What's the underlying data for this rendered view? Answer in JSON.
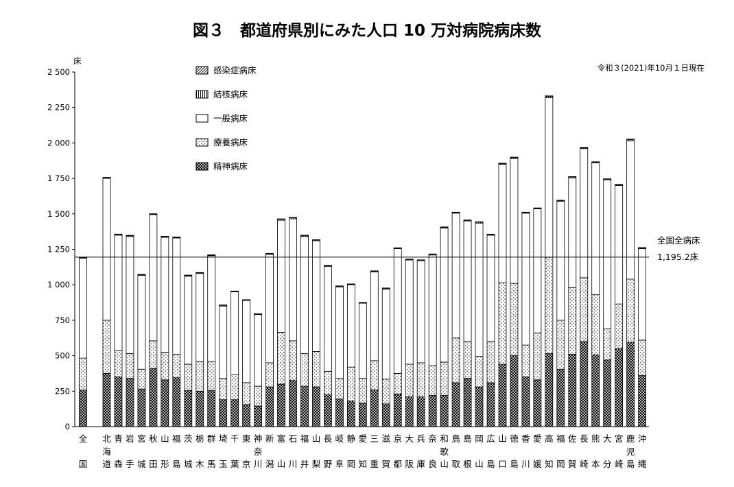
{
  "chart_data": {
    "type": "bar",
    "stacked": true,
    "title": "図３　都道府県別にみた人口 10 万対病院病床数",
    "date_note": "令和３(2021)年10月１日現在",
    "unit_label": "床",
    "ylim": [
      0,
      2500
    ],
    "yticks": [
      0,
      250,
      500,
      750,
      1000,
      1250,
      1500,
      1750,
      2000,
      2250,
      2500
    ],
    "ytick_labels": [
      "0",
      "250",
      "500",
      "750",
      "1 000",
      "1 250",
      "1 500",
      "1 750",
      "2 000",
      "2 250",
      "2 500"
    ],
    "reference_line": {
      "value": 1195.2,
      "label_line1": "全国全病床",
      "label_line2": "1,195.2床"
    },
    "categories": [
      "全国",
      "北海道",
      "青森",
      "岩手",
      "宮城",
      "秋田",
      "山形",
      "福島",
      "茨城",
      "栃木",
      "群馬",
      "埼玉",
      "千葉",
      "東京",
      "神奈川",
      "新潟",
      "富山",
      "石川",
      "福井",
      "山梨",
      "長野",
      "岐阜",
      "静岡",
      "愛知",
      "三重",
      "滋賀",
      "京都",
      "大阪",
      "兵庫",
      "奈良",
      "和歌山",
      "鳥取",
      "島根",
      "岡山",
      "広島",
      "山口",
      "徳島",
      "香川",
      "愛媛",
      "高知",
      "福岡",
      "佐賀",
      "長崎",
      "熊本",
      "大分",
      "宮崎",
      "鹿児島",
      "沖縄"
    ],
    "category_label_rows": [
      [
        "全",
        "北",
        "青",
        "岩",
        "宮",
        "秋",
        "山",
        "福",
        "茨",
        "栃",
        "群",
        "埼",
        "千",
        "東",
        "神",
        "新",
        "富",
        "石",
        "福",
        "山",
        "長",
        "岐",
        "静",
        "愛",
        "三",
        "滋",
        "京",
        "大",
        "兵",
        "奈",
        "和",
        "鳥",
        "島",
        "岡",
        "広",
        "山",
        "徳",
        "香",
        "愛",
        "高",
        "福",
        "佐",
        "長",
        "熊",
        "大",
        "宮",
        "鹿",
        "沖"
      ],
      [
        "",
        "海",
        "",
        "",
        "",
        "",
        "",
        "",
        "",
        "",
        "",
        "",
        "",
        "",
        "奈",
        "",
        "",
        "",
        "",
        "",
        "",
        "",
        "",
        "",
        "",
        "",
        "",
        "",
        "",
        "",
        "歌",
        "",
        "",
        "",
        "",
        "",
        "",
        "",
        "",
        "",
        "",
        "",
        "",
        "",
        "",
        "",
        "児",
        ""
      ],
      [
        "国",
        "道",
        "森",
        "手",
        "城",
        "田",
        "形",
        "島",
        "城",
        "木",
        "馬",
        "玉",
        "葉",
        "京",
        "川",
        "潟",
        "山",
        "川",
        "井",
        "梨",
        "野",
        "阜",
        "岡",
        "知",
        "重",
        "賀",
        "都",
        "阪",
        "庫",
        "良",
        "山",
        "取",
        "根",
        "山",
        "島",
        "口",
        "島",
        "川",
        "媛",
        "知",
        "岡",
        "賀",
        "崎",
        "本",
        "分",
        "崎",
        "島",
        "縄"
      ]
    ],
    "series": [
      {
        "name": "精神病床",
        "values": [
          258,
          375,
          350,
          340,
          265,
          410,
          330,
          345,
          255,
          250,
          255,
          190,
          190,
          155,
          145,
          280,
          300,
          325,
          285,
          280,
          225,
          195,
          180,
          165,
          260,
          160,
          230,
          210,
          210,
          220,
          220,
          310,
          340,
          280,
          310,
          440,
          500,
          350,
          330,
          515,
          405,
          510,
          600,
          505,
          470,
          550,
          595,
          360
        ]
      },
      {
        "name": "療養病床",
        "values": [
          225,
          375,
          185,
          175,
          140,
          195,
          195,
          165,
          185,
          210,
          205,
          150,
          175,
          155,
          140,
          170,
          365,
          280,
          230,
          250,
          165,
          145,
          240,
          175,
          205,
          175,
          145,
          230,
          240,
          210,
          235,
          315,
          260,
          215,
          290,
          575,
          510,
          225,
          330,
          680,
          345,
          470,
          450,
          425,
          220,
          315,
          445,
          250
        ]
      },
      {
        "name": "一般病床",
        "values": [
          705,
          1000,
          815,
          825,
          662,
          890,
          810,
          820,
          620,
          620,
          745,
          510,
          585,
          580,
          505,
          765,
          790,
          860,
          825,
          780,
          740,
          645,
          580,
          530,
          625,
          635,
          880,
          735,
          720,
          780,
          945,
          880,
          850,
          940,
          750,
          835,
          880,
          930,
          875,
          1123,
          838,
          773,
          910,
          930,
          1050,
          835,
          975,
          645
        ]
      },
      {
        "name": "結核病床",
        "values": [
          4,
          6,
          6,
          7,
          5,
          4,
          5,
          5,
          7,
          5,
          5,
          7,
          5,
          4,
          5,
          5,
          8,
          8,
          8,
          6,
          5,
          6,
          5,
          5,
          7,
          6,
          5,
          5,
          5,
          6,
          6,
          5,
          5,
          8,
          5,
          5,
          8,
          5,
          5,
          12,
          7,
          8,
          7,
          6,
          6,
          6,
          10,
          6
        ]
      },
      {
        "name": "感染症病床",
        "values": [
          1.5,
          1.5,
          1.5,
          2,
          1.5,
          2,
          2,
          2,
          1.5,
          1.5,
          1.5,
          1,
          1,
          1,
          0.8,
          1.5,
          2,
          2,
          2,
          2,
          1.5,
          1.5,
          1,
          1,
          1.5,
          1.5,
          1,
          1,
          1,
          1.5,
          2,
          2,
          2,
          1.5,
          1.5,
          2,
          2,
          2,
          2,
          2,
          1,
          2,
          2,
          1.5,
          1.5,
          2,
          1.5,
          1.5
        ]
      }
    ],
    "legend": [
      "感染症病床",
      "結核病床",
      "一般病床",
      "療養病床",
      "精神病床"
    ],
    "legend_position": "top-left",
    "grid": false
  }
}
